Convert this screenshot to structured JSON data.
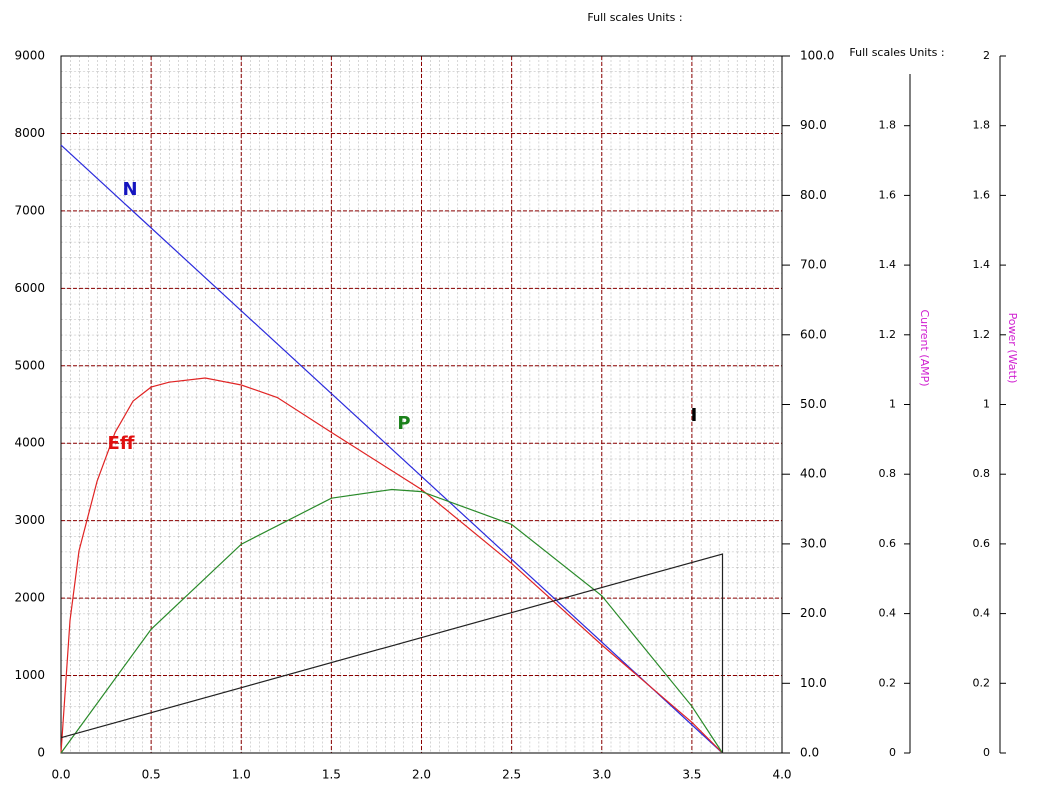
{
  "chart_data": {
    "type": "line",
    "units_labels": [
      "Full scales Units :",
      "Full scales Units :"
    ],
    "y3label": "Current (AMP)",
    "y4label": "Power (Watt)",
    "grid": true,
    "xlim": [
      0,
      4
    ],
    "xticks": [
      {
        "value": 0,
        "label": "0.0"
      },
      0.5,
      {
        "value": 1,
        "label": "1.0"
      },
      1.5,
      {
        "value": 2,
        "label": "2.0"
      },
      2.5,
      {
        "value": 3,
        "label": "3.0"
      },
      3.5,
      {
        "value": 4,
        "label": "4.0"
      }
    ],
    "ylim": [
      0,
      9000
    ],
    "yticks": [
      0,
      1000,
      2000,
      3000,
      4000,
      5000,
      6000,
      7000,
      8000,
      9000
    ],
    "y2lim": [
      0,
      100
    ],
    "y2ticks": [
      {
        "value": 0,
        "label": "0.0"
      },
      {
        "value": 10,
        "label": "10.0"
      },
      {
        "value": 20,
        "label": "20.0"
      },
      {
        "value": 30,
        "label": "30.0"
      },
      {
        "value": 40,
        "label": "40.0"
      },
      {
        "value": 50,
        "label": "50.0"
      },
      {
        "value": 60,
        "label": "60.0"
      },
      {
        "value": 70,
        "label": "70.0"
      },
      {
        "value": 80,
        "label": "80.0"
      },
      {
        "value": 90,
        "label": "90.0"
      },
      {
        "value": 100,
        "label": "100.0"
      }
    ],
    "y3lim": [
      0,
      2
    ],
    "y3ticks": [
      0,
      0.2,
      0.4,
      0.6,
      0.8,
      1,
      1.2,
      1.4,
      1.6,
      1.8
    ],
    "y4lim": [
      0,
      2
    ],
    "y4ticks": [
      0,
      0.2,
      0.4,
      0.6,
      0.8,
      1,
      1.2,
      1.4,
      1.6,
      1.8,
      2
    ],
    "series": [
      {
        "name": "N",
        "color": "#2b2bdc",
        "axis": "y",
        "x": [
          0,
          3.67
        ],
        "values": [
          7850,
          0
        ]
      },
      {
        "name": "Eff",
        "color": "#e02424",
        "axis": "y2",
        "x": [
          0,
          0.05,
          0.1,
          0.2,
          0.3,
          0.4,
          0.5,
          0.6,
          0.8,
          1.0,
          1.2,
          1.5,
          2.0,
          2.5,
          3.0,
          3.5,
          3.67
        ],
        "values": [
          0,
          19,
          29,
          39,
          46,
          50.5,
          52.5,
          53.2,
          53.8,
          52.8,
          51,
          46,
          37.8,
          27.2,
          15.5,
          4.4,
          0
        ]
      },
      {
        "name": "P",
        "color": "#2a8a2a",
        "axis": "y4",
        "x": [
          0,
          0.5,
          1.0,
          1.5,
          1.835,
          2.0,
          2.5,
          3.0,
          3.5,
          3.67
        ],
        "values": [
          0,
          0.355,
          0.599,
          0.731,
          0.756,
          0.75,
          0.656,
          0.451,
          0.134,
          0
        ]
      },
      {
        "name": "I",
        "color": "#222222",
        "axis": "y3",
        "x": [
          0,
          3.67,
          3.67
        ],
        "values": [
          0.044,
          0.571,
          0
        ]
      }
    ]
  }
}
